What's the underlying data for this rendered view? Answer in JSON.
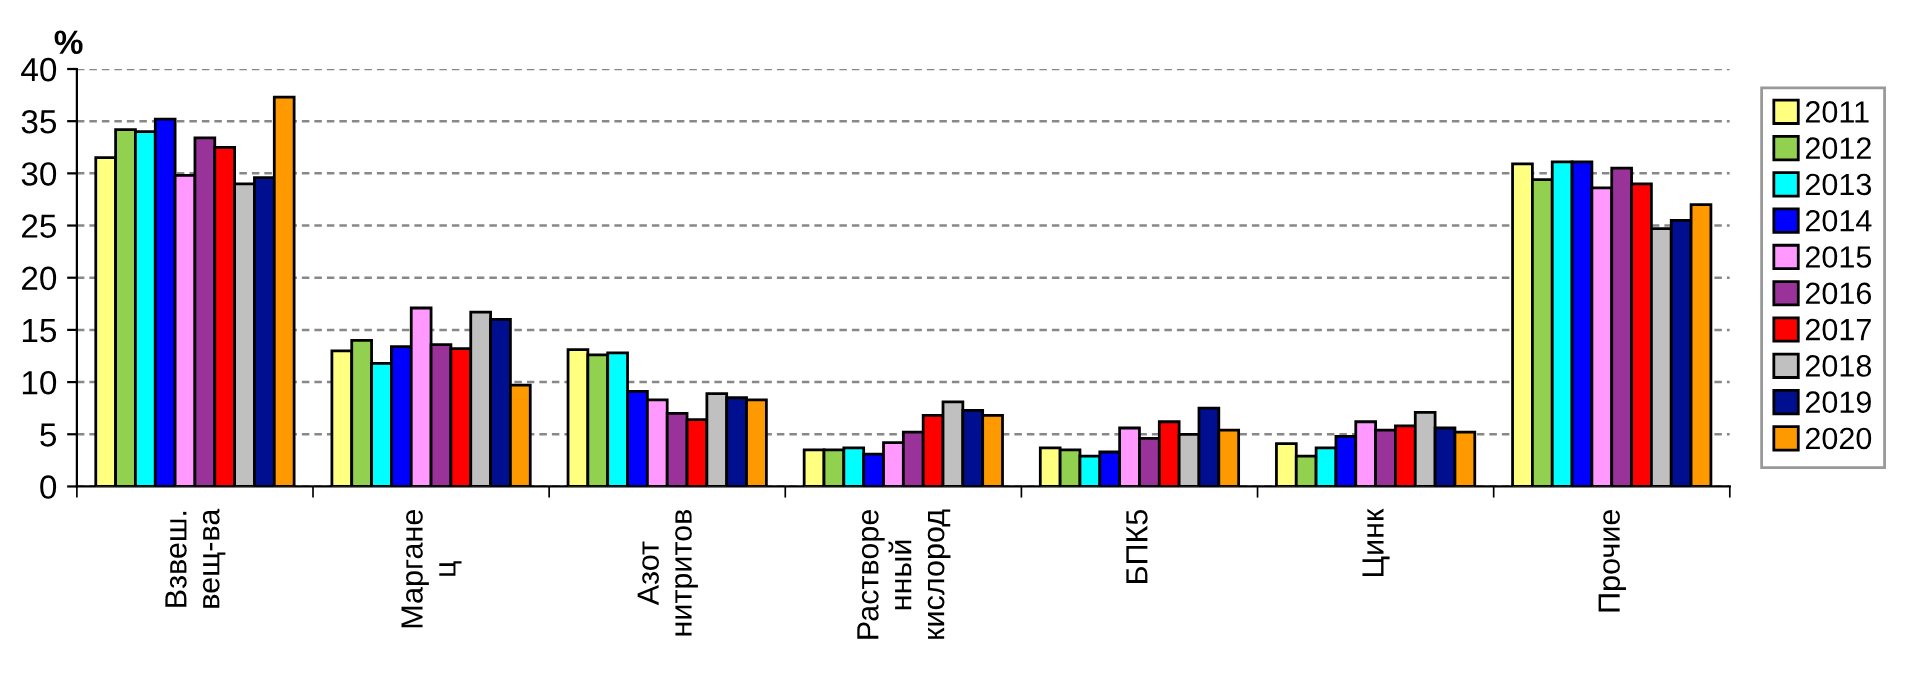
{
  "chart_data": {
    "type": "bar",
    "ylabel": "%",
    "categories": [
      "Взвеш.\nвещ-ва",
      "Маргане\nц",
      "Азот\nнитритов",
      "Растворе\nнный\nкислород",
      "БПК5",
      "Цинк",
      "Прочие"
    ],
    "series": [
      {
        "name": "2011",
        "color": "#ffff80",
        "values": [
          31.5,
          13.0,
          13.1,
          3.5,
          3.7,
          4.1,
          30.9
        ]
      },
      {
        "name": "2012",
        "color": "#92d050",
        "values": [
          34.2,
          14.0,
          12.6,
          3.5,
          3.5,
          2.9,
          29.4
        ]
      },
      {
        "name": "2013",
        "color": "#00ffff",
        "values": [
          34.0,
          11.8,
          12.8,
          3.7,
          2.9,
          3.7,
          31.1
        ]
      },
      {
        "name": "2014",
        "color": "#0000ff",
        "values": [
          35.2,
          13.4,
          9.1,
          3.1,
          3.3,
          4.8,
          31.1
        ]
      },
      {
        "name": "2015",
        "color": "#ff99ff",
        "values": [
          29.8,
          17.1,
          8.3,
          4.2,
          5.6,
          6.2,
          28.6
        ]
      },
      {
        "name": "2016",
        "color": "#993399",
        "values": [
          33.4,
          13.6,
          7.0,
          5.2,
          4.6,
          5.4,
          30.5
        ]
      },
      {
        "name": "2017",
        "color": "#ff0000",
        "values": [
          32.5,
          13.2,
          6.4,
          6.8,
          6.2,
          5.8,
          29.0
        ]
      },
      {
        "name": "2018",
        "color": "#c0c0c0",
        "values": [
          29.0,
          16.7,
          8.9,
          8.1,
          5.0,
          7.1,
          24.7
        ]
      },
      {
        "name": "2019",
        "color": "#000f8f",
        "values": [
          29.6,
          16.0,
          8.5,
          7.3,
          7.5,
          5.6,
          25.5
        ]
      },
      {
        "name": "2020",
        "color": "#ff9900",
        "values": [
          37.3,
          9.7,
          8.3,
          6.8,
          5.4,
          5.2,
          27.0
        ]
      }
    ],
    "ylim": [
      0,
      40
    ],
    "yticks": [
      0,
      5,
      10,
      15,
      20,
      25,
      30,
      35,
      40
    ],
    "grid": "y",
    "legend": "right"
  }
}
